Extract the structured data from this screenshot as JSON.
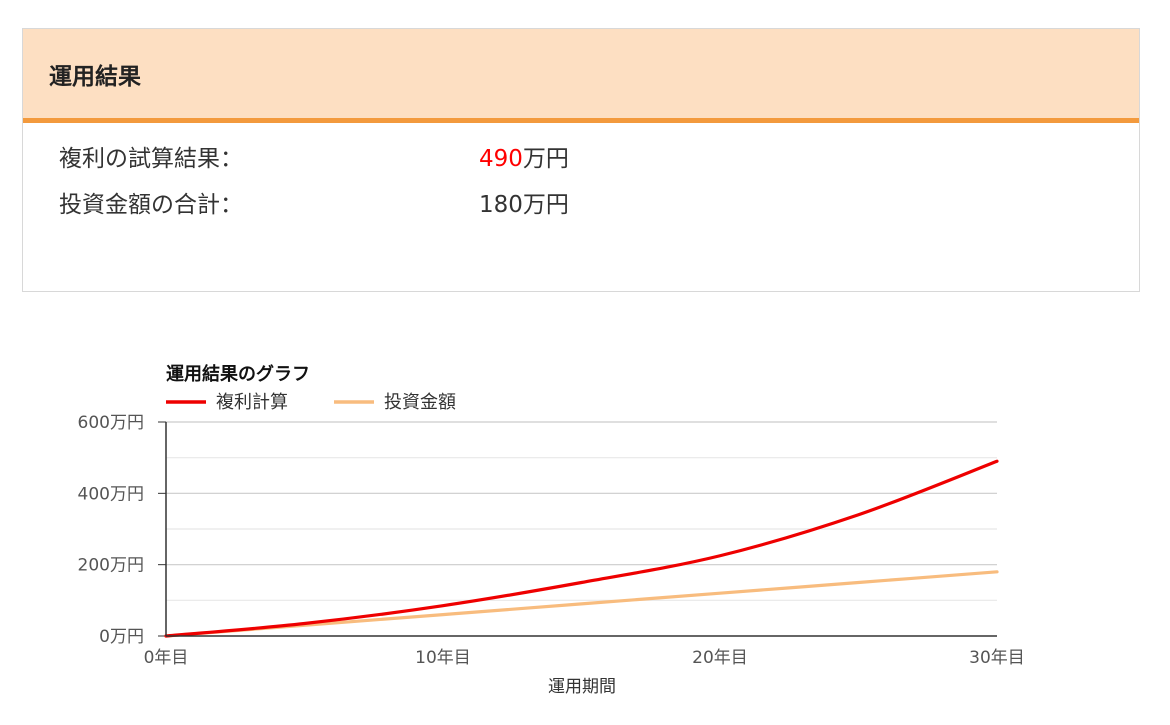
{
  "result": {
    "title": "運用結果",
    "compound_label": "複利の試算結果：",
    "compound_value": "490",
    "compound_unit": "万円",
    "investment_label": "投資金額の合計：",
    "investment_value": "180万円"
  },
  "chart_data": {
    "type": "line",
    "title": "運用結果のグラフ",
    "xlabel": "運用期間",
    "ylabel": "",
    "x": [
      0,
      5,
      10,
      15,
      20,
      25,
      30
    ],
    "xticks": [
      {
        "value": 0,
        "label": "0年目"
      },
      {
        "value": 10,
        "label": "10年目"
      },
      {
        "value": 20,
        "label": "20年目"
      },
      {
        "value": 30,
        "label": "30年目"
      }
    ],
    "yticks": [
      {
        "value": 0,
        "label": "0万円"
      },
      {
        "value": 200,
        "label": "200万円"
      },
      {
        "value": 400,
        "label": "400万円"
      },
      {
        "value": 600,
        "label": "600万円"
      }
    ],
    "xlim": [
      0,
      30
    ],
    "ylim": [
      0,
      600
    ],
    "grid": true,
    "legend_position": "top-left",
    "series": [
      {
        "name": "複利計算",
        "color": "#ee0000",
        "values": [
          0,
          35,
          85,
          150,
          225,
          340,
          490
        ]
      },
      {
        "name": "投資金額",
        "color": "#f8bc7e",
        "values": [
          0,
          30,
          60,
          90,
          120,
          150,
          180
        ]
      }
    ]
  }
}
